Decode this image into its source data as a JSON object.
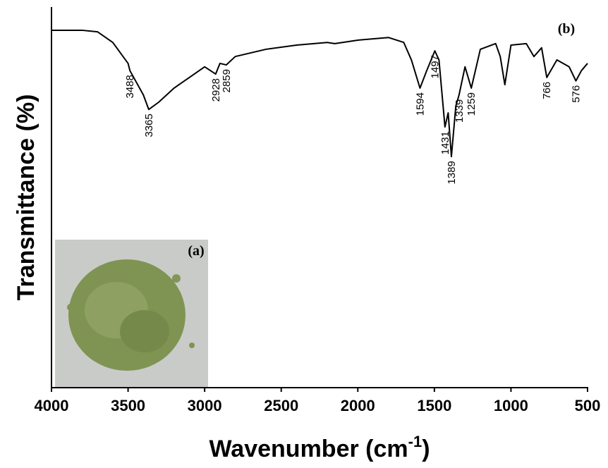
{
  "chart_data": {
    "type": "line",
    "y_label": "Transmittance (%)",
    "x_label": [
      "Wavenumber (cm",
      "-1",
      ")"
    ],
    "panel_labels": [
      "(a)",
      "(b)"
    ],
    "color": "#000000",
    "x": [
      4000,
      3800,
      3700,
      3600,
      3500,
      3488,
      3400,
      3365,
      3300,
      3200,
      3100,
      3000,
      2928,
      2900,
      2859,
      2800,
      2600,
      2400,
      2200,
      2150,
      2000,
      1800,
      1700,
      1650,
      1594,
      1550,
      1497,
      1470,
      1431,
      1410,
      1389,
      1360,
      1339,
      1300,
      1259,
      1200,
      1100,
      1070,
      1040,
      1000,
      900,
      850,
      800,
      766,
      700,
      620,
      576,
      540,
      500
    ],
    "values": [
      93.9,
      93.9,
      93.5,
      90.7,
      85.2,
      83.3,
      76.9,
      73.1,
      75,
      78.7,
      81.5,
      84.3,
      82.4,
      85.2,
      84.8,
      87,
      88.9,
      90,
      90.7,
      90.4,
      91.3,
      92,
      90.7,
      86.1,
      78.7,
      83.3,
      88.5,
      86.1,
      68.5,
      72.2,
      60.7,
      74,
      76.9,
      84.3,
      78.7,
      88.9,
      90.4,
      87,
      79.6,
      90,
      90.4,
      87,
      89.3,
      81.5,
      86.1,
      84.3,
      80.6,
      83.3,
      85.2
    ],
    "peak_labels": [
      3488,
      3365,
      2928,
      2859,
      1594,
      1497,
      1431,
      1389,
      1339,
      1259,
      766,
      576
    ],
    "xlim": [
      4000,
      500
    ],
    "xticks": [
      4000,
      3500,
      3000,
      2500,
      2000,
      1500,
      1000,
      500
    ],
    "ylim": [
      0,
      100
    ]
  }
}
